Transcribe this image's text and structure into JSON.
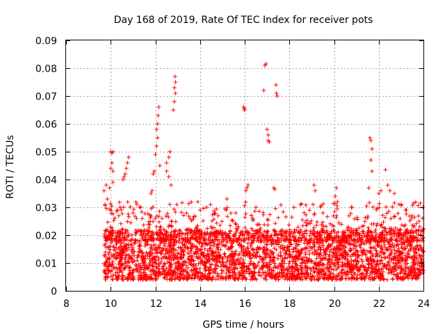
{
  "chart_data": {
    "type": "scatter",
    "title": "Day 168 of 2019, Rate Of TEC Index for receiver pots",
    "xlabel": "GPS time / hours",
    "ylabel": "ROTI / TECUs",
    "xlim": [
      8,
      24
    ],
    "ylim": [
      0,
      0.09
    ],
    "xticks": [
      8,
      10,
      12,
      14,
      16,
      18,
      20,
      22,
      24
    ],
    "xtick_labels": [
      "8",
      "10",
      "12",
      "14",
      "16",
      "18",
      "20",
      "22",
      "24"
    ],
    "yticks": [
      0,
      0.01,
      0.02,
      0.03,
      0.04,
      0.05,
      0.06,
      0.07,
      0.08,
      0.09
    ],
    "ytick_labels": [
      "0",
      "0.01",
      "0.02",
      "0.03",
      "0.04",
      "0.05",
      "0.06",
      "0.07",
      "0.08",
      "0.09"
    ],
    "grid": true,
    "marker": "+",
    "color": "#ff0000",
    "data_range_hours": [
      9.7,
      24
    ],
    "baseline_band": [
      0.004,
      0.022
    ],
    "series": [
      {
        "name": "ROTI",
        "points": [
          [
            10.0,
            0.05
          ],
          [
            10.05,
            0.0495
          ],
          [
            10.1,
            0.05
          ],
          [
            10.05,
            0.046
          ],
          [
            10.1,
            0.043
          ],
          [
            10.0,
            0.044
          ],
          [
            10.1,
            0.039
          ],
          [
            9.8,
            0.038
          ],
          [
            9.95,
            0.037
          ],
          [
            9.7,
            0.036
          ],
          [
            9.85,
            0.033
          ],
          [
            9.75,
            0.031
          ],
          [
            10.6,
            0.041
          ],
          [
            10.65,
            0.042
          ],
          [
            10.7,
            0.044
          ],
          [
            10.75,
            0.046
          ],
          [
            10.8,
            0.048
          ],
          [
            10.55,
            0.04
          ],
          [
            11.9,
            0.042
          ],
          [
            11.95,
            0.043
          ],
          [
            12.0,
            0.049
          ],
          [
            12.05,
            0.052
          ],
          [
            12.1,
            0.055
          ],
          [
            12.05,
            0.058
          ],
          [
            12.1,
            0.06
          ],
          [
            12.12,
            0.063
          ],
          [
            12.15,
            0.066
          ],
          [
            11.8,
            0.035
          ],
          [
            11.85,
            0.036
          ],
          [
            12.2,
            0.045
          ],
          [
            12.5,
            0.046
          ],
          [
            12.6,
            0.048
          ],
          [
            12.65,
            0.05
          ],
          [
            12.5,
            0.043
          ],
          [
            12.6,
            0.041
          ],
          [
            12.7,
            0.038
          ],
          [
            12.8,
            0.065
          ],
          [
            12.85,
            0.068
          ],
          [
            12.9,
            0.071
          ],
          [
            12.85,
            0.073
          ],
          [
            12.9,
            0.075
          ],
          [
            12.88,
            0.077
          ],
          [
            15.95,
            0.066
          ],
          [
            15.98,
            0.065
          ],
          [
            16.0,
            0.0655
          ],
          [
            16.1,
            0.037
          ],
          [
            16.15,
            0.038
          ],
          [
            16.05,
            0.036
          ],
          [
            16.9,
            0.081
          ],
          [
            16.95,
            0.0815
          ],
          [
            16.85,
            0.072
          ],
          [
            17.0,
            0.058
          ],
          [
            17.05,
            0.056
          ],
          [
            17.05,
            0.054
          ],
          [
            17.1,
            0.0535
          ],
          [
            17.3,
            0.037
          ],
          [
            17.35,
            0.0365
          ],
          [
            17.4,
            0.074
          ],
          [
            17.42,
            0.071
          ],
          [
            17.45,
            0.07
          ],
          [
            19.1,
            0.038
          ],
          [
            19.15,
            0.036
          ],
          [
            20.1,
            0.037
          ],
          [
            20.05,
            0.034
          ],
          [
            20.15,
            0.032
          ],
          [
            21.6,
            0.055
          ],
          [
            21.65,
            0.054
          ],
          [
            21.7,
            0.051
          ],
          [
            21.65,
            0.047
          ],
          [
            21.7,
            0.043
          ],
          [
            21.55,
            0.037
          ],
          [
            22.0,
            0.035
          ],
          [
            22.1,
            0.036
          ],
          [
            22.3,
            0.0435
          ],
          [
            22.4,
            0.038
          ],
          [
            22.5,
            0.036
          ],
          [
            22.7,
            0.035
          ],
          [
            23.0,
            0.031
          ],
          [
            23.2,
            0.029
          ],
          [
            23.5,
            0.027
          ],
          [
            23.8,
            0.025
          ],
          [
            13.9,
            0.032
          ],
          [
            14.3,
            0.03
          ],
          [
            15.2,
            0.033
          ],
          [
            15.6,
            0.028
          ],
          [
            18.2,
            0.03
          ],
          [
            18.5,
            0.031
          ],
          [
            18.9,
            0.029
          ],
          [
            20.8,
            0.03
          ],
          [
            11.3,
            0.03
          ],
          [
            11.0,
            0.028
          ],
          [
            10.3,
            0.029
          ],
          [
            14.8,
            0.027
          ],
          [
            16.5,
            0.03
          ],
          [
            19.5,
            0.028
          ]
        ]
      }
    ]
  }
}
